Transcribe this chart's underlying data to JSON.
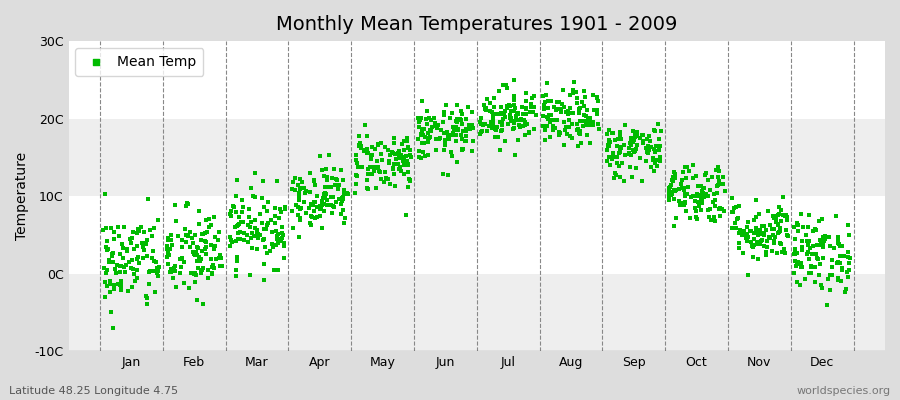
{
  "title": "Monthly Mean Temperatures 1901 - 2009",
  "ylabel": "Temperature",
  "xlabel_months": [
    "Jan",
    "Feb",
    "Mar",
    "Apr",
    "May",
    "Jun",
    "Jul",
    "Aug",
    "Sep",
    "Oct",
    "Nov",
    "Dec"
  ],
  "monthly_means": [
    1.5,
    2.5,
    6.0,
    10.0,
    14.5,
    18.0,
    20.5,
    20.0,
    16.0,
    10.5,
    5.5,
    2.5
  ],
  "monthly_stds": [
    3.2,
    3.0,
    2.5,
    2.0,
    2.0,
    1.8,
    1.8,
    1.8,
    1.8,
    2.0,
    2.0,
    2.5
  ],
  "n_years": 109,
  "ylim": [
    -10,
    30
  ],
  "yticks": [
    -10,
    0,
    10,
    20,
    30
  ],
  "ytick_labels": [
    "-10C",
    "0C",
    "10C",
    "20C",
    "30C"
  ],
  "dot_color": "#00bb00",
  "dot_size": 5,
  "figure_bg_color": "#dddddd",
  "plot_bg_color": "#ffffff",
  "band_color_odd": "#eeeeee",
  "band_color_even": "#ffffff",
  "dashed_line_color": "#888888",
  "legend_label": "Mean Temp",
  "bottom_left_text": "Latitude 48.25 Longitude 4.75",
  "bottom_right_text": "worldspecies.org",
  "title_fontsize": 14,
  "axis_label_fontsize": 10,
  "tick_fontsize": 9,
  "annotation_fontsize": 8
}
